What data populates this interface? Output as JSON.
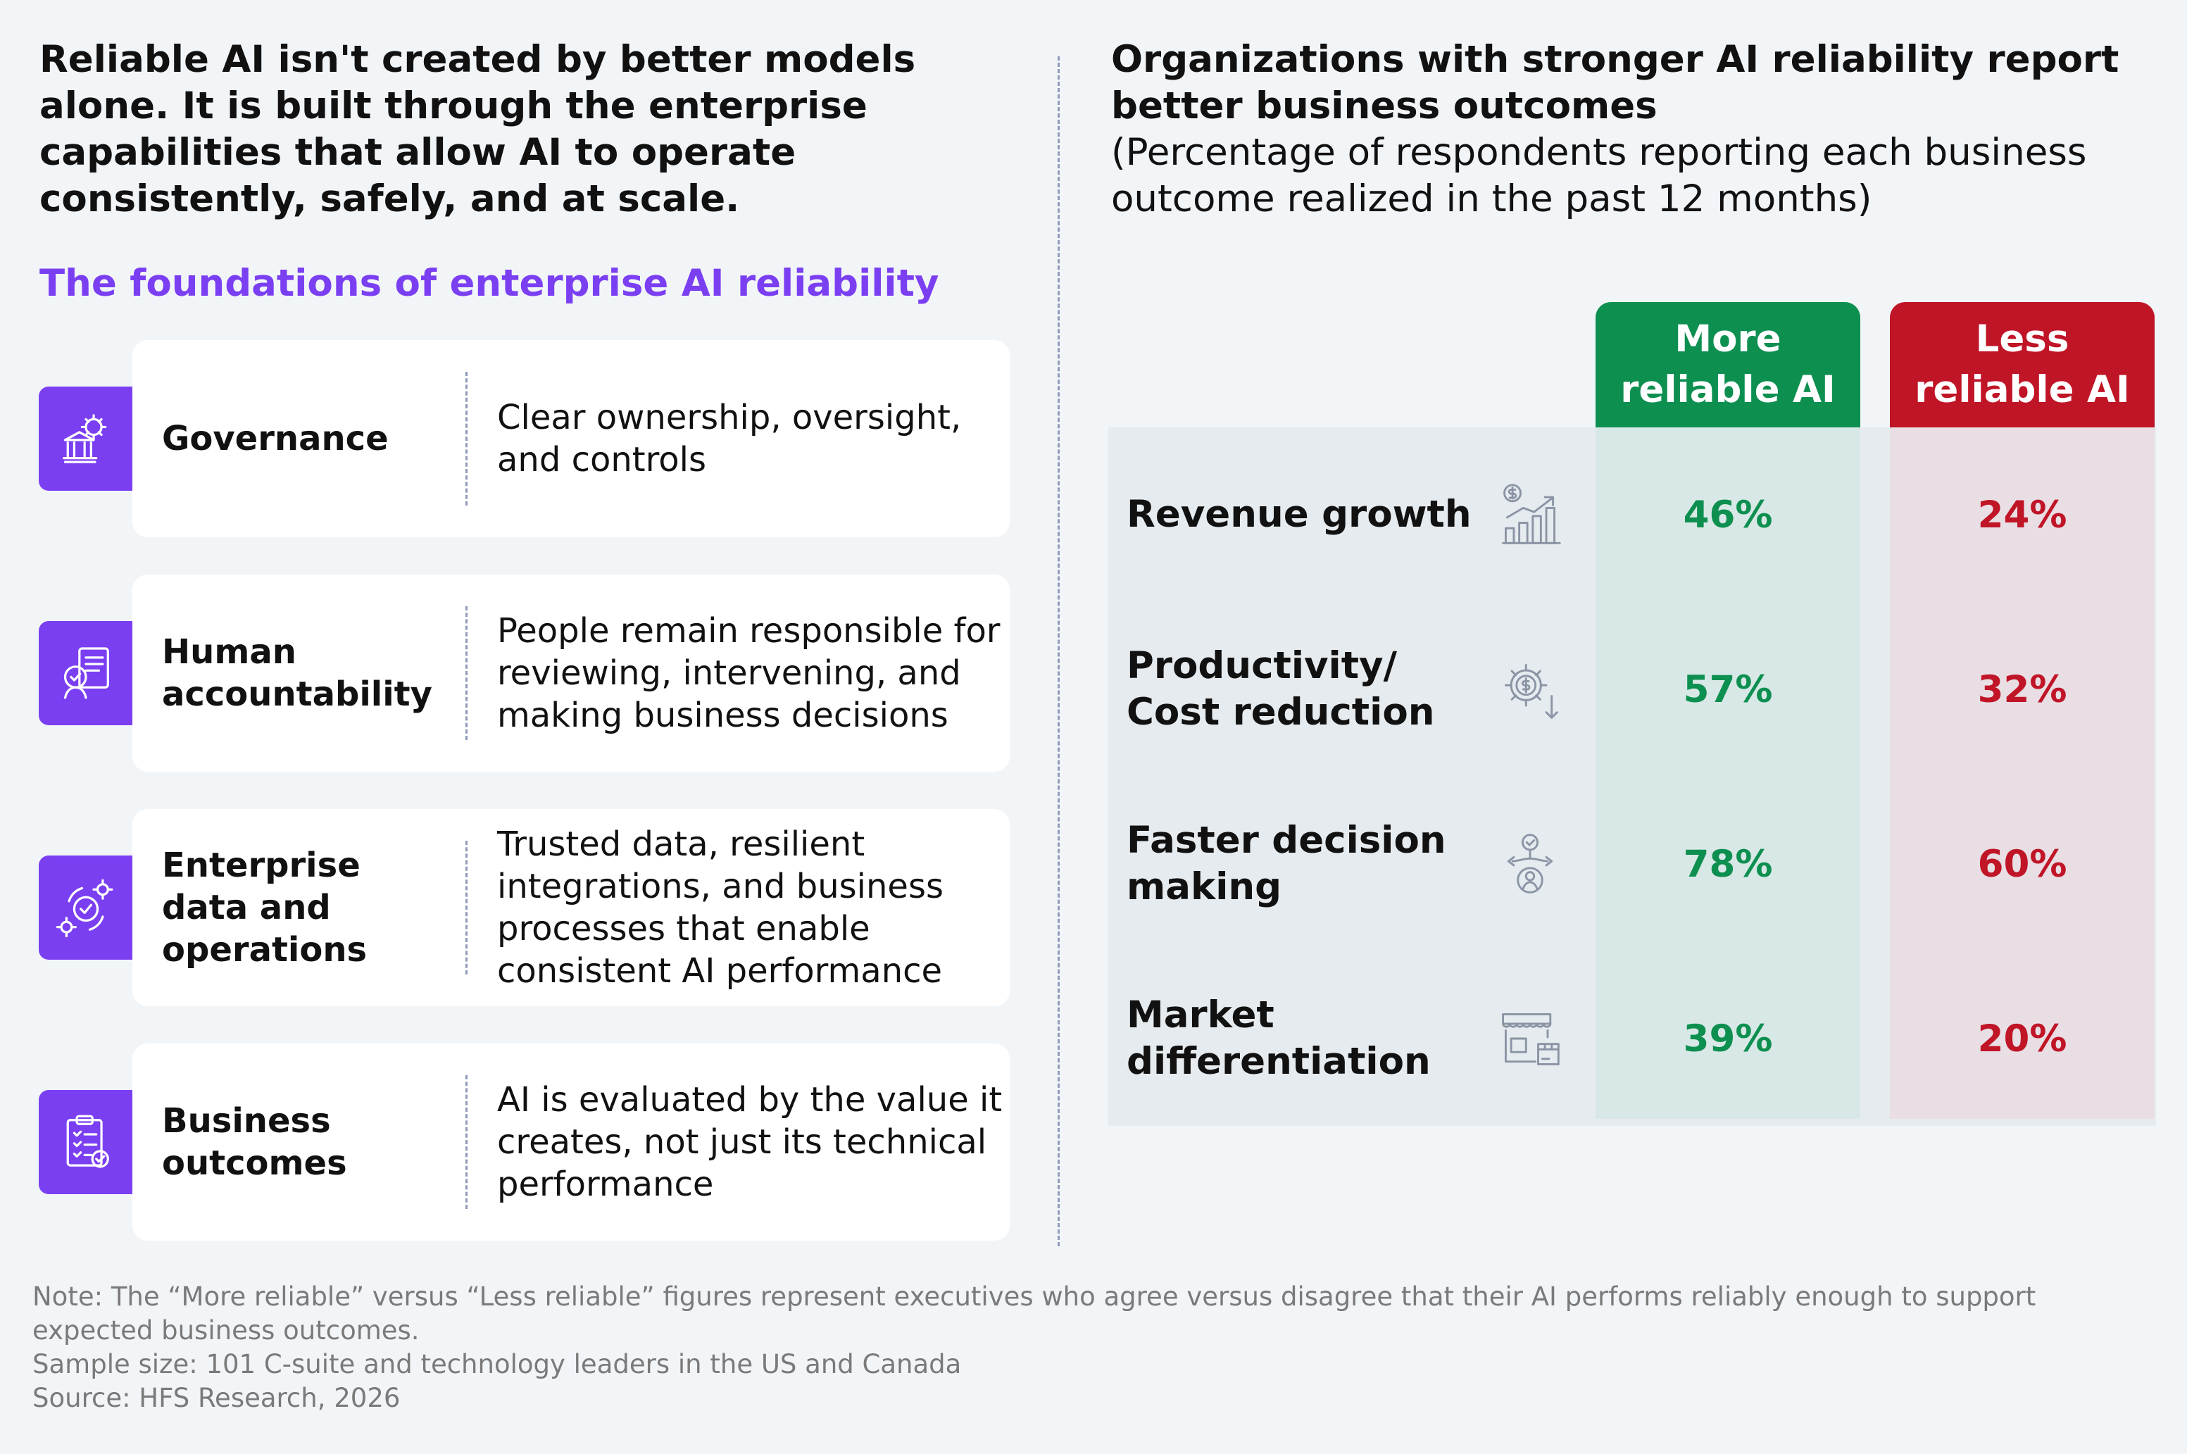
{
  "headline": "Reliable AI isn't created by better models alone. It is built through the enterprise capabilities that allow AI to operate consistently, safely, and at scale.",
  "foundations_title": "The foundations of enterprise AI reliability",
  "colors": {
    "purple": "#7b3ff2",
    "green": "#0d8f50",
    "red": "#c01427",
    "green_band": "#d8e8e6",
    "red_band": "#e8dee3",
    "row_band": "#e6ebef",
    "icon_gray": "#8a94a4"
  },
  "capabilities": [
    {
      "name": "Governance",
      "description": "Clear ownership, oversight, and controls",
      "icon": "bank-gear-icon"
    },
    {
      "name": "Human accountability",
      "description": "People remain responsible for reviewing, intervening, and making business decisions",
      "icon": "person-checklist-icon"
    },
    {
      "name": "Enterprise data and operations",
      "description": "Trusted data, resilient integrations, and business processes that enable consistent AI performance",
      "icon": "gears-check-icon"
    },
    {
      "name": "Business outcomes",
      "description": "AI is evaluated by the value it creates, not just its technical performance",
      "icon": "clipboard-check-icon"
    }
  ],
  "right_title": "Organizations with stronger AI reliability report better business outcomes",
  "right_subtitle": "(Percentage of respondents reporting each business outcome realized in the past 12 months)",
  "chart_data": {
    "type": "table",
    "columns": [
      "More reliable AI",
      "Less reliable AI"
    ],
    "rows": [
      {
        "label": "Revenue growth",
        "icon": "revenue-chart-icon",
        "values": [
          46,
          24
        ],
        "display": [
          "46%",
          "24%"
        ]
      },
      {
        "label": "Productivity/ Cost reduction",
        "icon": "dollar-gear-icon",
        "values": [
          57,
          32
        ],
        "display": [
          "57%",
          "32%"
        ]
      },
      {
        "label": "Faster decision making",
        "icon": "decision-arrows-icon",
        "values": [
          78,
          60
        ],
        "display": [
          "78%",
          "60%"
        ]
      },
      {
        "label": "Market differentiation",
        "icon": "storefront-icon",
        "values": [
          39,
          20
        ],
        "display": [
          "39%",
          "20%"
        ]
      }
    ],
    "unit": "%"
  },
  "notes": {
    "note": "Note: The “More reliable” versus “Less reliable” figures represent executives who agree versus disagree that their AI performs reliably enough to support expected business outcomes.",
    "sample": "Sample size: 101 C-suite and technology leaders in the US and Canada",
    "source": "Source: HFS Research, 2026"
  }
}
